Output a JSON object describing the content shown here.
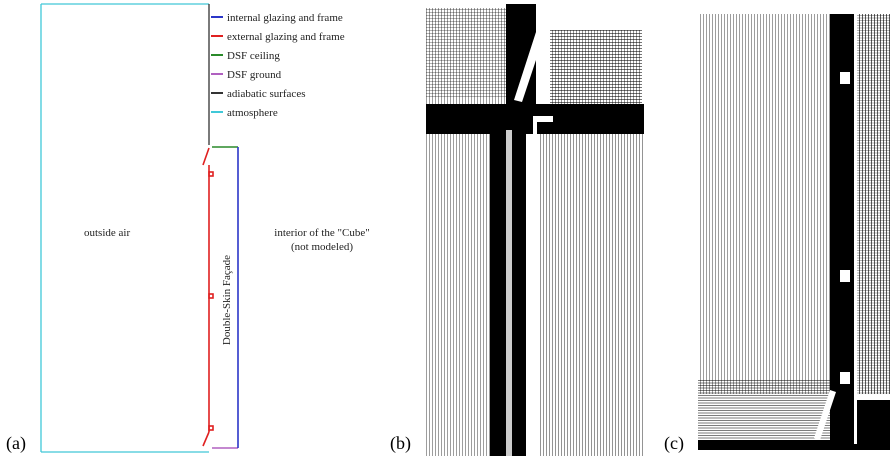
{
  "figure": {
    "panels": [
      {
        "id": "a",
        "caption": "(a)"
      },
      {
        "id": "b",
        "caption": "(b)"
      },
      {
        "id": "c",
        "caption": "(c)"
      }
    ]
  },
  "legend": [
    {
      "label": "internal glazing and frame",
      "color": "#2b36c8"
    },
    {
      "label": "external glazing and frame",
      "color": "#e02020"
    },
    {
      "label": "DSF ceiling",
      "color": "#2a8a2a"
    },
    {
      "label": "DSF ground",
      "color": "#b060c0"
    },
    {
      "label": "adiabatic surfaces",
      "color": "#333333"
    },
    {
      "label": "atmosphere",
      "color": "#40c8d8"
    }
  ],
  "labels": {
    "outside_air": "outside air",
    "interior_line1": "interior of the \"Cube\"",
    "interior_line2": "(not modeled)",
    "dsf": "Double-Skin Façade"
  }
}
